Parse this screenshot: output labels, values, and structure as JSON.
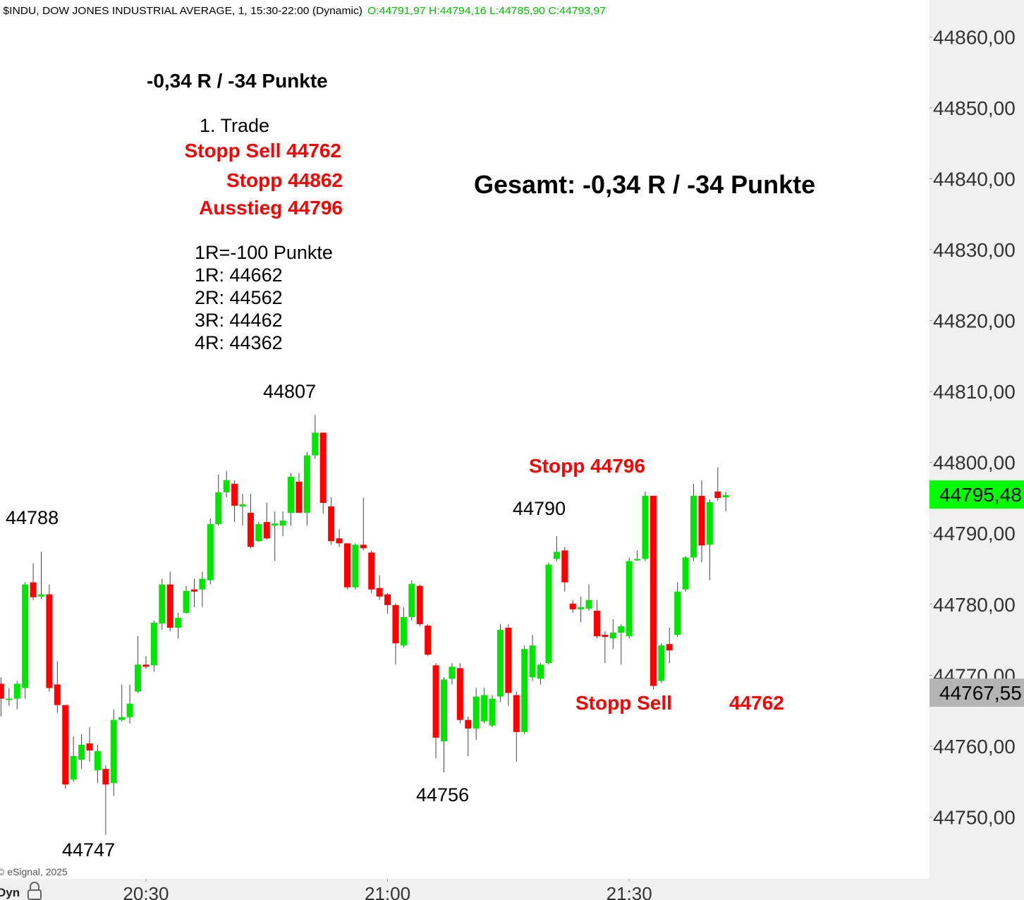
{
  "chart_data": {
    "type": "candlestick",
    "title": "* $INDU, DOW JONES INDUSTRIAL AVERAGE, 1, 15:30-22:00 (Dynamic)",
    "ohlc_label": "O:44791,97 H:44794,16 L:44785,90 C:44793,97",
    "source": "© eSignal, 2025",
    "mode": "Dyn",
    "up_color": "#00e600",
    "down_color": "#ff0000",
    "wick_color": "#444444",
    "x": [
      "20:12",
      "20:13",
      "20:14",
      "20:15",
      "20:16",
      "20:17",
      "20:18",
      "20:19",
      "20:20",
      "20:21",
      "20:22",
      "20:23",
      "20:24",
      "20:25",
      "20:26",
      "20:27",
      "20:28",
      "20:29",
      "20:30",
      "20:31",
      "20:32",
      "20:33",
      "20:34",
      "20:35",
      "20:36",
      "20:37",
      "20:38",
      "20:39",
      "20:40",
      "20:41",
      "20:42",
      "20:43",
      "20:44",
      "20:45",
      "20:46",
      "20:47",
      "20:48",
      "20:49",
      "20:50",
      "20:51",
      "20:52",
      "20:53",
      "20:54",
      "20:55",
      "20:56",
      "20:57",
      "20:58",
      "20:59",
      "21:00",
      "21:01",
      "21:02",
      "21:03",
      "21:04",
      "21:05",
      "21:06",
      "21:07",
      "21:08",
      "21:09",
      "21:10",
      "21:11",
      "21:12",
      "21:13",
      "21:14",
      "21:15",
      "21:16",
      "21:17",
      "21:18",
      "21:19",
      "21:20",
      "21:21",
      "21:22",
      "21:23",
      "21:24",
      "21:25",
      "21:26",
      "21:27",
      "21:28",
      "21:29",
      "21:30",
      "21:31",
      "21:32",
      "21:33",
      "21:34",
      "21:35",
      "21:36",
      "21:37",
      "21:38",
      "21:39",
      "21:40",
      "21:41",
      "21:42"
    ],
    "open": [
      44768.8,
      44766.5,
      44766.7,
      44768.2,
      44783.1,
      44781.1,
      44781.4,
      44768.7,
      44765.8,
      44755.3,
      44758.1,
      44760.4,
      44756.6,
      44756.8,
      44754.8,
      44763.7,
      44764.1,
      44767.7,
      44771.5,
      44771.4,
      44777.3,
      44782.8,
      44776.7,
      44778.8,
      44782.1,
      44782.1,
      44783.4,
      44791.3,
      44795.8,
      44797.0,
      44793.8,
      44792.9,
      44788.9,
      44791.6,
      44791.1,
      44791.1,
      44792.9,
      44797.3,
      44792.9,
      44801.0,
      44804.2,
      44793.8,
      44789.3,
      44788.6,
      44782.4,
      44788.4,
      44787.3,
      44782.3,
      44781.4,
      44779.9,
      44774.2,
      44778.2,
      44782.6,
      44777.0,
      44771.4,
      44760.7,
      44769.5,
      44771.0,
      44763.7,
      44762.5,
      44763.5,
      44762.9,
      44767.0,
      44776.7,
      44767.2,
      44762.0,
      44769.7,
      44769.5,
      44771.7,
      44786.4,
      44787.6,
      44780.1,
      44779.3,
      44779.4,
      44779.1,
      44775.7,
      44775.2,
      44776.0,
      44775.5,
      44786.2,
      44786.4,
      44795.3,
      44769.2,
      44774.4,
      44775.7,
      44782.1,
      44786.6,
      44795.3,
      44788.4,
      44795.9,
      44795.1
    ],
    "high": [
      44769.7,
      44768.2,
      44769.2,
      44783.1,
      44785.8,
      44787.4,
      44782.8,
      44772.0,
      44765.8,
      44761.4,
      44761.7,
      44762.7,
      44760.2,
      44757.3,
      44765.2,
      44768.7,
      44768.7,
      44775.5,
      44772.7,
      44777.7,
      44783.6,
      44784.6,
      44778.8,
      44782.6,
      44783.6,
      44784.6,
      44792.1,
      44798.3,
      44798.8,
      44797.5,
      44795.6,
      44795.6,
      44791.6,
      44794.3,
      44793.1,
      44793.1,
      44798.5,
      44798.5,
      44801.5,
      44806.7,
      44804.2,
      44795.1,
      44790.6,
      44788.6,
      44788.6,
      44795.0,
      44787.6,
      44784.1,
      44781.6,
      44780.1,
      44779.6,
      44783.4,
      44782.8,
      44777.2,
      44771.7,
      44769.7,
      44771.7,
      44771.7,
      44764.2,
      44768.2,
      44768.2,
      44767.2,
      44777.2,
      44777.2,
      44767.7,
      44774.2,
      44775.7,
      44771.7,
      44785.9,
      44789.6,
      44788.1,
      44780.6,
      44781.1,
      44782.8,
      44780.6,
      44776.2,
      44777.9,
      44777.2,
      44786.6,
      44787.6,
      44795.9,
      44795.3,
      44774.5,
      44776.7,
      44783.1,
      44786.8,
      44797.0,
      44797.5,
      44794.8,
      44799.3,
      44795.9
    ],
    "low": [
      44764.2,
      44765.7,
      44765.2,
      44766.7,
      44780.6,
      44780.8,
      44767.7,
      44764.7,
      44754.0,
      44755.0,
      44756.8,
      44757.8,
      44754.8,
      44747.5,
      44753.0,
      44763.5,
      44763.2,
      44767.5,
      44770.9,
      44770.5,
      44776.4,
      44776.2,
      44775.2,
      44778.7,
      44779.6,
      44779.6,
      44782.8,
      44791.1,
      44795.1,
      44791.6,
      44791.1,
      44787.9,
      44788.8,
      44789.1,
      44786.1,
      44789.6,
      44791.1,
      44792.9,
      44791.1,
      44800.5,
      44792.8,
      44788.4,
      44788.1,
      44782.1,
      44782.1,
      44787.6,
      44781.6,
      44780.6,
      44778.7,
      44771.5,
      44773.9,
      44777.7,
      44776.9,
      44772.7,
      44758.3,
      44756.3,
      44768.7,
      44763.2,
      44758.6,
      44760.9,
      44763.2,
      44762.7,
      44766.2,
      44765.7,
      44757.8,
      44761.7,
      44769.2,
      44768.7,
      44771.5,
      44786.1,
      44781.8,
      44778.8,
      44777.5,
      44779.1,
      44775.2,
      44771.7,
      44773.7,
      44771.5,
      44775.2,
      44786.1,
      44786.1,
      44768.0,
      44768.9,
      44771.7,
      44775.4,
      44781.8,
      44786.1,
      44785.9,
      44783.4,
      44794.6,
      44793.1
    ],
    "close": [
      44766.7,
      44766.7,
      44768.8,
      44782.8,
      44781.0,
      44781.4,
      44768.2,
      44765.8,
      44754.6,
      44758.6,
      44760.2,
      44759.4,
      44759.3,
      44754.6,
      44763.7,
      44764.1,
      44766.0,
      44771.5,
      44771.2,
      44777.4,
      44782.8,
      44776.7,
      44778.1,
      44781.9,
      44781.8,
      44783.6,
      44791.3,
      44795.8,
      44797.5,
      44793.9,
      44794.1,
      44788.1,
      44791.3,
      44789.3,
      44791.4,
      44791.8,
      44798.0,
      44792.9,
      44801.0,
      44804.2,
      44794.3,
      44788.9,
      44788.6,
      44782.4,
      44788.4,
      44787.9,
      44782.1,
      44781.1,
      44779.9,
      44774.5,
      44778.2,
      44782.9,
      44777.2,
      44772.9,
      44761.2,
      44769.4,
      44771.2,
      44763.7,
      44762.5,
      44767.0,
      44767.2,
      44766.7,
      44776.4,
      44767.5,
      44762.0,
      44773.7,
      44774.2,
      44771.5,
      44785.6,
      44787.4,
      44783.1,
      44779.3,
      44779.6,
      44780.6,
      44775.5,
      44775.4,
      44776.0,
      44776.9,
      44786.1,
      44786.4,
      44795.3,
      44768.5,
      44774.2,
      44773.5,
      44781.8,
      44786.6,
      44795.3,
      44788.3,
      44794.4,
      44795.0,
      44795.4
    ],
    "xticks": [
      "20:30",
      "21:00",
      "21:30"
    ],
    "ylim": [
      44741.3,
      44865.2
    ],
    "yticks": [
      {
        "value": 44750,
        "label": "44750,00"
      },
      {
        "value": 44760,
        "label": "44760,00"
      },
      {
        "value": 44770,
        "label": "44770,00"
      },
      {
        "value": 44780,
        "label": "44780,00"
      },
      {
        "value": 44790,
        "label": "44790,00"
      },
      {
        "value": 44800,
        "label": "44800,00"
      },
      {
        "value": 44810,
        "label": "44810,00"
      },
      {
        "value": 44820,
        "label": "44820,00"
      },
      {
        "value": 44830,
        "label": "44830,00"
      },
      {
        "value": 44840,
        "label": "44840,00"
      },
      {
        "value": 44850,
        "label": "44850,00"
      },
      {
        "value": 44860,
        "label": "44860,00"
      }
    ],
    "price_labels": [
      {
        "value": 44795.48,
        "label": "44795,48",
        "color": "#00ff00"
      },
      {
        "value": 44767.55,
        "label": "44767,55",
        "color": "#b4b4b4"
      }
    ],
    "annotations": [
      "-0,34 R / -34 Punkte",
      "1. Trade",
      "Stopp Sell 44762",
      "Stopp 44862",
      "Ausstieg 44796",
      "1R=-100 Punkte",
      "1R: 44662",
      "2R: 44562",
      "3R: 44462",
      "4R: 44362",
      "Gesamt: -0,34 R / -34 Punkte",
      "44807",
      "44788",
      "44747",
      "44756",
      "44790",
      "Stopp 44796",
      "Stopp Sell",
      "44762"
    ]
  }
}
